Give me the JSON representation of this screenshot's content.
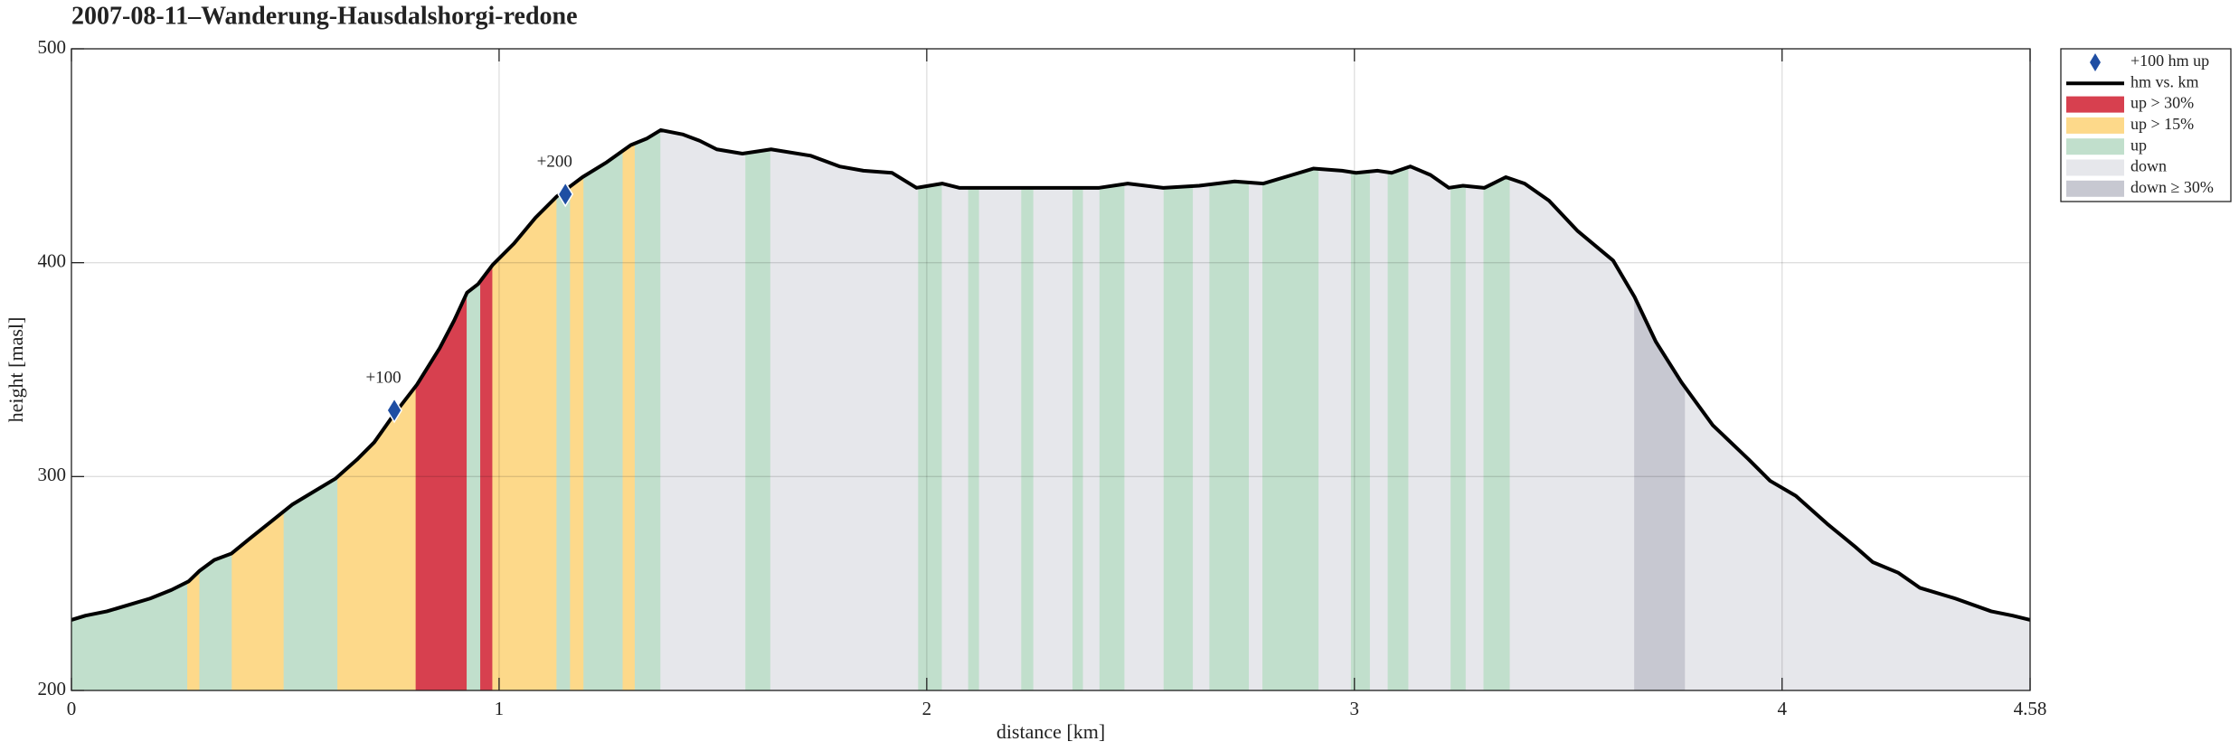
{
  "chart_data": {
    "type": "profile",
    "title": "2007-08-11–Wanderung-Hausdalshorgi-redone",
    "x_label": "distance [km]",
    "y_label": "height [masl]",
    "xlim": [
      0,
      4.58
    ],
    "ylim": [
      200,
      500
    ],
    "xticks": [
      0,
      1,
      2,
      3,
      4,
      4.58
    ],
    "yticks": [
      200,
      300,
      400,
      500
    ],
    "grid": true,
    "legend": "outside-right",
    "x": [
      0,
      0.033,
      0.083,
      0.134,
      0.184,
      0.234,
      0.274,
      0.3,
      0.334,
      0.374,
      0.417,
      0.467,
      0.517,
      0.567,
      0.617,
      0.668,
      0.708,
      0.754,
      0.808,
      0.861,
      0.895,
      0.925,
      0.951,
      0.985,
      1.035,
      1.085,
      1.135,
      1.195,
      1.252,
      1.308,
      1.345,
      1.378,
      1.429,
      1.469,
      1.509,
      1.569,
      1.636,
      1.729,
      1.796,
      1.852,
      1.919,
      1.976,
      2.036,
      2.076,
      2.17,
      2.27,
      2.336,
      2.403,
      2.47,
      2.553,
      2.637,
      2.72,
      2.787,
      2.854,
      2.904,
      2.971,
      3.004,
      3.054,
      3.087,
      3.131,
      3.178,
      3.221,
      3.254,
      3.304,
      3.354,
      3.398,
      3.455,
      3.521,
      3.605,
      3.655,
      3.705,
      3.765,
      3.838,
      3.922,
      3.972,
      4.032,
      4.105,
      4.172,
      4.212,
      4.272,
      4.322,
      4.405,
      4.489,
      4.539,
      4.58
    ],
    "series": [
      {
        "name": "+100 hm up",
        "type": "scatter",
        "color": "#1f4ea3",
        "x": [
          0.755,
          1.155
        ],
        "values": [
          331,
          432
        ],
        "labels": [
          "+100",
          "+200"
        ]
      },
      {
        "name": "hm vs. km",
        "type": "line",
        "color": "#000000",
        "values": [
          233,
          235,
          237,
          240,
          243,
          247,
          251,
          256,
          261,
          264,
          271,
          279,
          287,
          293,
          299,
          308,
          316,
          329,
          343,
          360,
          373,
          386,
          390,
          399,
          409,
          421,
          431,
          440,
          447,
          455,
          458,
          462,
          460,
          457,
          453,
          451,
          453,
          450,
          445,
          443,
          442,
          435,
          437,
          435,
          435,
          435,
          435,
          435,
          437,
          435,
          436,
          438,
          437,
          441,
          444,
          443,
          442,
          443,
          442,
          445,
          441,
          435,
          436,
          435,
          440,
          437,
          429,
          415,
          401,
          384,
          363,
          344,
          324,
          308,
          298,
          291,
          278,
          267,
          260,
          255,
          248,
          243,
          237,
          235,
          233
        ]
      },
      {
        "name": "up > 30%",
        "type": "intervals",
        "color": "#d7404f",
        "intervals": [
          [
            0.804,
            0.925
          ],
          [
            0.955,
            0.985
          ]
        ]
      },
      {
        "name": "up > 15%",
        "type": "intervals",
        "color": "#fdd98a",
        "intervals": [
          [
            0.27,
            0.3
          ],
          [
            0.374,
            0.497
          ],
          [
            0.621,
            0.804
          ],
          [
            0.985,
            1.135
          ],
          [
            1.165,
            1.198
          ],
          [
            1.288,
            1.318
          ]
        ]
      },
      {
        "name": "up",
        "type": "intervals",
        "color": "#c1dfcc",
        "intervals": [
          [
            0,
            0.27
          ],
          [
            0.3,
            0.374
          ],
          [
            0.497,
            0.621
          ],
          [
            0.925,
            0.955
          ],
          [
            1.135,
            1.165
          ],
          [
            1.198,
            1.288
          ],
          [
            1.318,
            1.378
          ],
          [
            1.575,
            1.635
          ],
          [
            1.979,
            2.036
          ],
          [
            2.096,
            2.123
          ],
          [
            2.22,
            2.25
          ],
          [
            2.34,
            2.366
          ],
          [
            2.403,
            2.463
          ],
          [
            2.553,
            2.623
          ],
          [
            2.66,
            2.754
          ],
          [
            2.784,
            2.917
          ],
          [
            2.991,
            3.037
          ],
          [
            3.077,
            3.127
          ],
          [
            3.224,
            3.261
          ],
          [
            3.301,
            3.364
          ]
        ]
      },
      {
        "name": "down",
        "type": "intervals",
        "color": "#e6e7eb",
        "intervals": [
          [
            1.378,
            1.575
          ],
          [
            1.635,
            1.979
          ],
          [
            2.036,
            2.096
          ],
          [
            2.123,
            2.22
          ],
          [
            2.25,
            2.34
          ],
          [
            2.366,
            2.403
          ],
          [
            2.463,
            2.553
          ],
          [
            2.623,
            2.66
          ],
          [
            2.754,
            2.784
          ],
          [
            2.917,
            2.991
          ],
          [
            3.037,
            3.077
          ],
          [
            3.127,
            3.224
          ],
          [
            3.261,
            3.301
          ],
          [
            3.364,
            3.655
          ],
          [
            3.772,
            4.58
          ]
        ]
      },
      {
        "name": "down ≥ 30%",
        "type": "intervals",
        "color": "#c7c8d1",
        "intervals": [
          [
            3.655,
            3.772
          ]
        ]
      }
    ]
  }
}
